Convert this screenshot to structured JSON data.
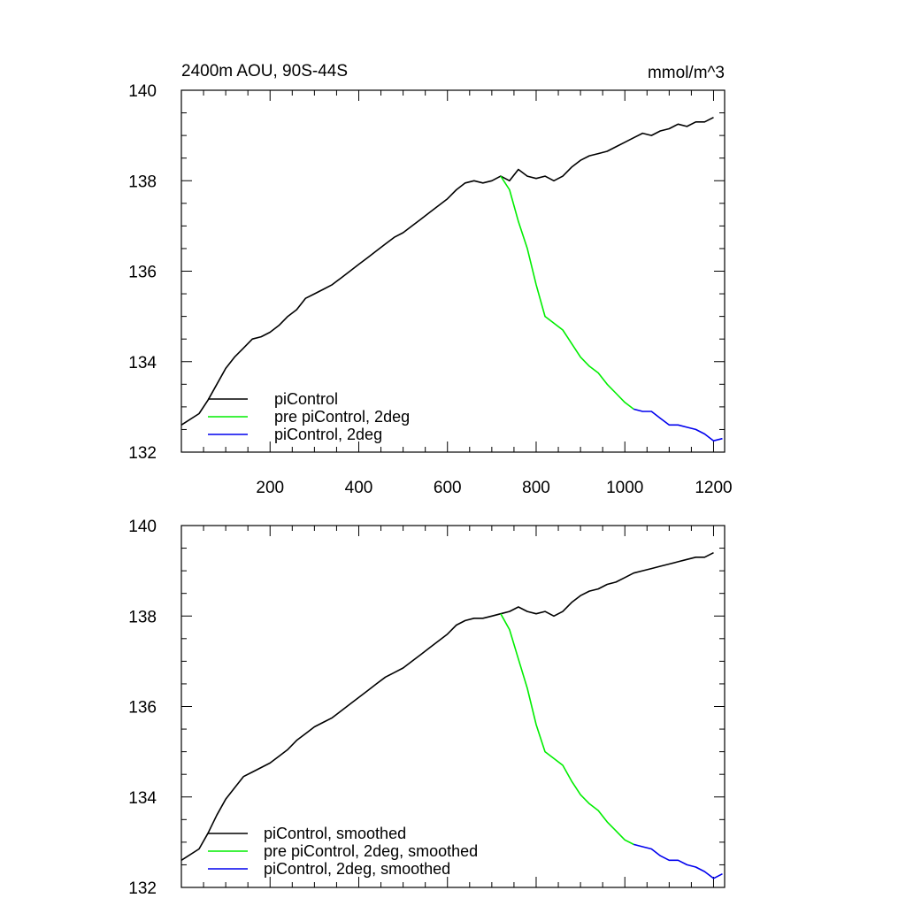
{
  "chart_data": [
    {
      "type": "line",
      "title": "2400m AOU, 90S-44S",
      "units": "mmol/m^3",
      "xlim": [
        0,
        1225
      ],
      "ylim": [
        132,
        140
      ],
      "x_ticks": [
        200,
        400,
        600,
        800,
        1000,
        1200
      ],
      "y_ticks": [
        132,
        134,
        136,
        138,
        140
      ],
      "show_x_tick_labels": true,
      "grid": false,
      "legend_position": "bottom-left",
      "series": [
        {
          "name": "piControl",
          "color": "#000000",
          "x": [
            0,
            40,
            60,
            80,
            100,
            120,
            140,
            160,
            180,
            200,
            220,
            240,
            260,
            280,
            300,
            320,
            340,
            360,
            380,
            400,
            420,
            440,
            460,
            480,
            500,
            520,
            540,
            560,
            580,
            600,
            620,
            640,
            660,
            680,
            700,
            720,
            740,
            760,
            780,
            800,
            820,
            840,
            860,
            880,
            900,
            920,
            940,
            960,
            980,
            1000,
            1020,
            1040,
            1060,
            1080,
            1100,
            1120,
            1140,
            1160,
            1180,
            1200
          ],
          "y": [
            132.6,
            132.85,
            133.15,
            133.5,
            133.85,
            134.1,
            134.3,
            134.5,
            134.55,
            134.65,
            134.8,
            135.0,
            135.15,
            135.4,
            135.5,
            135.6,
            135.7,
            135.85,
            136.0,
            136.15,
            136.3,
            136.45,
            136.6,
            136.75,
            136.85,
            137.0,
            137.15,
            137.3,
            137.45,
            137.6,
            137.8,
            137.95,
            138.0,
            137.95,
            138.0,
            138.1,
            138.0,
            138.25,
            138.1,
            138.05,
            138.1,
            138.0,
            138.1,
            138.3,
            138.45,
            138.55,
            138.6,
            138.65,
            138.75,
            138.85,
            138.95,
            139.05,
            139.0,
            139.1,
            139.15,
            139.25,
            139.2,
            139.3,
            139.3,
            139.4
          ]
        },
        {
          "name": "pre piControl, 2deg",
          "color": "#00ee00",
          "x": [
            720,
            740,
            760,
            780,
            800,
            820,
            840,
            860,
            880,
            900,
            920,
            940,
            960,
            980,
            1000,
            1020
          ],
          "y": [
            138.1,
            137.8,
            137.1,
            136.5,
            135.7,
            135.0,
            134.85,
            134.7,
            134.4,
            134.1,
            133.9,
            133.75,
            133.5,
            133.3,
            133.1,
            132.95
          ]
        },
        {
          "name": "piControl, 2deg",
          "color": "#0000ee",
          "x": [
            1020,
            1040,
            1060,
            1080,
            1100,
            1120,
            1140,
            1160,
            1180,
            1200,
            1220
          ],
          "y": [
            132.95,
            132.9,
            132.9,
            132.75,
            132.6,
            132.6,
            132.55,
            132.5,
            132.4,
            132.25,
            132.3
          ]
        }
      ]
    },
    {
      "type": "line",
      "xlim": [
        0,
        1225
      ],
      "ylim": [
        132,
        140
      ],
      "x_ticks": [
        200,
        400,
        600,
        800,
        1000,
        1200
      ],
      "y_ticks": [
        132,
        134,
        136,
        138,
        140
      ],
      "show_x_tick_labels": false,
      "grid": false,
      "legend_position": "bottom-left",
      "series": [
        {
          "name": "piControl, smoothed",
          "color": "#000000",
          "x": [
            0,
            40,
            60,
            80,
            100,
            120,
            140,
            160,
            180,
            200,
            220,
            240,
            260,
            280,
            300,
            320,
            340,
            360,
            380,
            400,
            420,
            440,
            460,
            480,
            500,
            520,
            540,
            560,
            580,
            600,
            620,
            640,
            660,
            680,
            700,
            720,
            740,
            760,
            780,
            800,
            820,
            840,
            860,
            880,
            900,
            920,
            940,
            960,
            980,
            1000,
            1020,
            1040,
            1060,
            1080,
            1100,
            1120,
            1140,
            1160,
            1180,
            1200
          ],
          "y": [
            132.6,
            132.85,
            133.2,
            133.6,
            133.95,
            134.2,
            134.45,
            134.55,
            134.65,
            134.75,
            134.9,
            135.05,
            135.25,
            135.4,
            135.55,
            135.65,
            135.75,
            135.9,
            136.05,
            136.2,
            136.35,
            136.5,
            136.65,
            136.75,
            136.85,
            137.0,
            137.15,
            137.3,
            137.45,
            137.6,
            137.8,
            137.9,
            137.95,
            137.95,
            138.0,
            138.05,
            138.1,
            138.2,
            138.1,
            138.05,
            138.1,
            138.0,
            138.1,
            138.3,
            138.45,
            138.55,
            138.6,
            138.7,
            138.75,
            138.85,
            138.95,
            139.0,
            139.05,
            139.1,
            139.15,
            139.2,
            139.25,
            139.3,
            139.3,
            139.4
          ]
        },
        {
          "name": "pre piControl, 2deg, smoothed",
          "color": "#00ee00",
          "x": [
            720,
            740,
            760,
            780,
            800,
            820,
            840,
            860,
            880,
            900,
            920,
            940,
            960,
            980,
            1000,
            1020
          ],
          "y": [
            138.05,
            137.7,
            137.05,
            136.4,
            135.6,
            135.0,
            134.85,
            134.7,
            134.35,
            134.05,
            133.85,
            133.7,
            133.45,
            133.25,
            133.05,
            132.95
          ]
        },
        {
          "name": "piControl, 2deg, smoothed",
          "color": "#0000ee",
          "x": [
            1020,
            1040,
            1060,
            1080,
            1100,
            1120,
            1140,
            1160,
            1180,
            1200,
            1220
          ],
          "y": [
            132.95,
            132.9,
            132.85,
            132.7,
            132.6,
            132.6,
            132.5,
            132.45,
            132.35,
            132.2,
            132.3
          ]
        }
      ]
    }
  ]
}
